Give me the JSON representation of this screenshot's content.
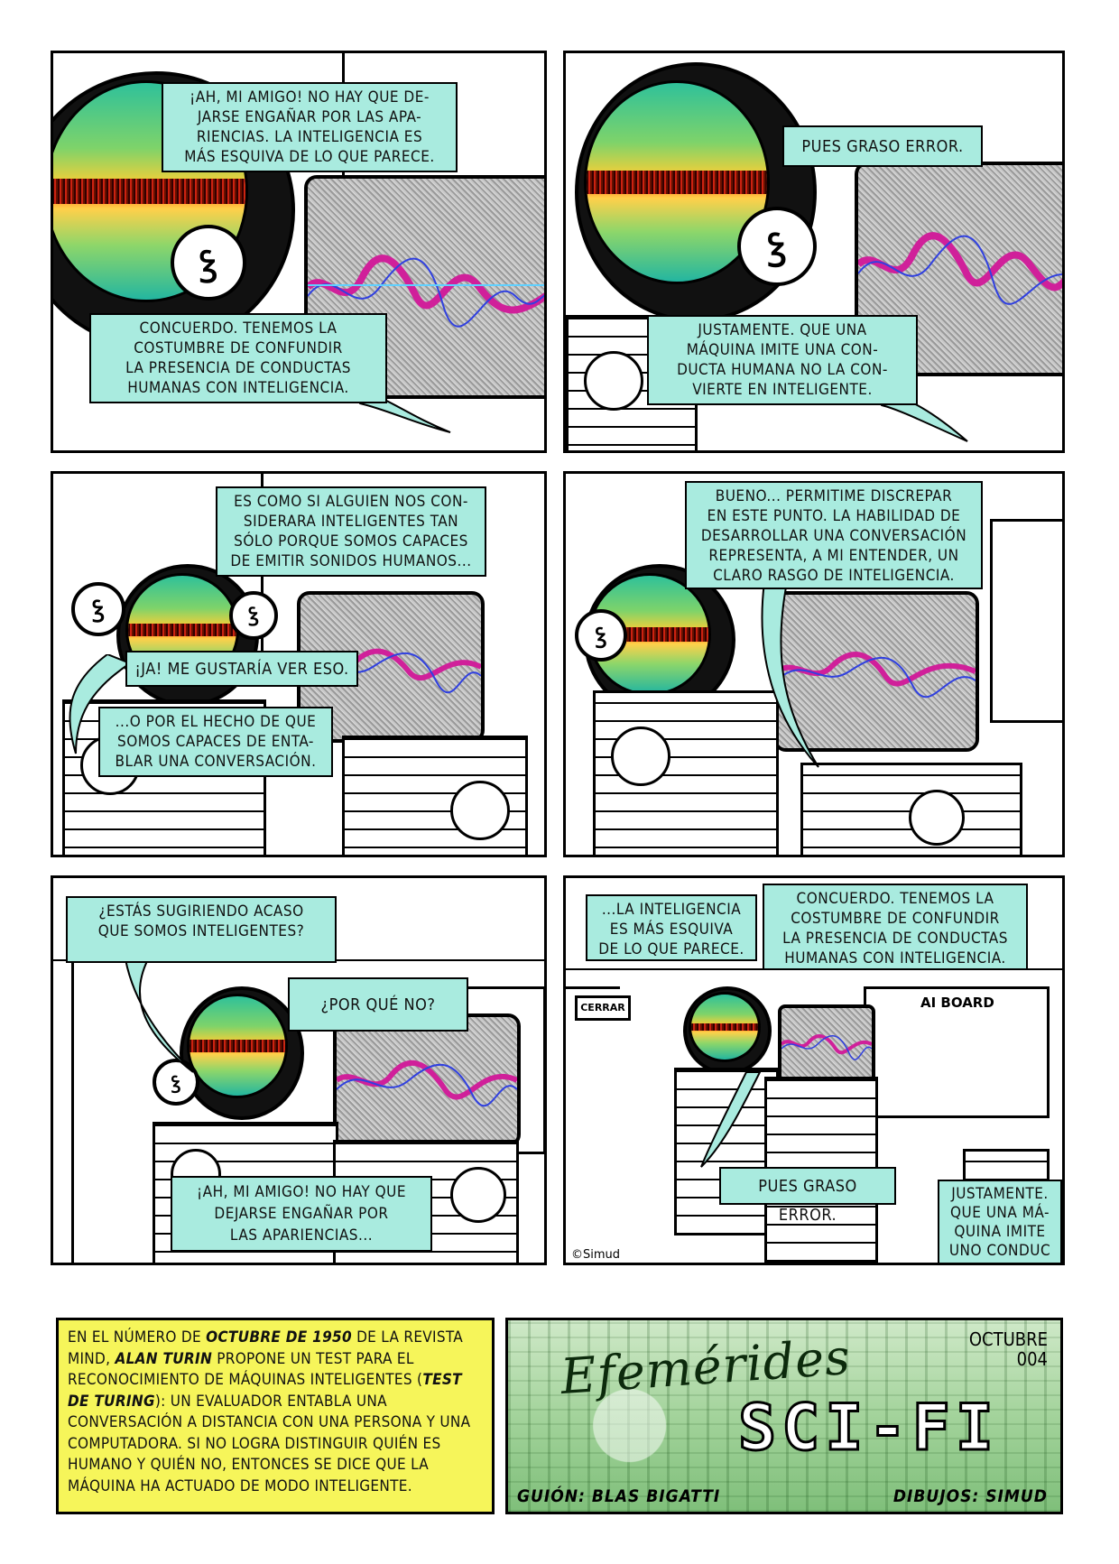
{
  "panels": [
    {
      "bubbles": [
        "¡AH, MI AMIGO! NO HAY QUE DE-\nJARSE ENGAÑAR POR LAS APA-\nRIENCIAS. LA INTELIGENCIA ES\nMÁS ESQUIVA DE LO QUE PARECE.",
        "CONCUERDO. TENEMOS LA\nCOSTUMBRE DE CONFUNDIR\nLA PRESENCIA DE CONDUCTAS\nHUMANAS CON INTELIGENCIA."
      ]
    },
    {
      "bubbles": [
        "PUES GRASO ERROR.",
        "JUSTAMENTE. QUE UNA\nMÁQUINA IMITE UNA CON-\nDUCTA HUMANA NO LA CON-\nVIERTE EN INTELIGENTE."
      ]
    },
    {
      "bubbles": [
        "ES COMO SI ALGUIEN NOS CON-\nSIDERARA INTELIGENTES TAN\nSÓLO PORQUE SOMOS CAPACES\nDE EMITIR SONIDOS HUMANOS...",
        "¡JA! ME GUSTARÍA VER ESO.",
        "...O POR EL HECHO DE QUE\nSOMOS CAPACES DE ENTA-\nBLAR UNA CONVERSACIÓN."
      ]
    },
    {
      "bubbles": [
        "BUENO... PERMITIME DISCREPAR\nEN ESTE PUNTO. LA HABILIDAD DE\nDESARROLLAR UNA CONVERSACIÓN\nREPRESENTA, A MI ENTENDER, UN\nCLARO RASGO DE INTELIGENCIA."
      ]
    },
    {
      "bubbles": [
        "¿ESTÁS SUGIRIENDO ACASO\nQUE SOMOS INTELIGENTES?",
        "¿POR QUÉ NO?",
        "¡AH, MI AMIGO! NO HAY QUE\nDEJARSE ENGAÑAR POR\nLAS APARIENCIAS..."
      ]
    },
    {
      "bubbles": [
        "...LA INTELIGENCIA\nES MÁS ESQUIVA\nDE LO QUE PARECE.",
        "CONCUERDO. TENEMOS LA\nCOSTUMBRE DE CONFUNDIR\nLA PRESENCIA DE CONDUCTAS\nHUMANAS CON INTELIGENCIA.",
        "PUES GRASO ERROR.",
        "JUSTAMENTE.\nQUE UNA MÁ-\nQUINA IMITE\nUNO CONDUC"
      ],
      "door_sign": "CERRAR",
      "board_title": "AI BOARD",
      "copyright": "©Simud"
    }
  ],
  "caption": {
    "text_before_1": "EN EL NÚMERO DE ",
    "bold_1": "OCTUBRE DE 1950",
    "text_before_2": " DE LA REVISTA MIND, ",
    "bold_2": "ALAN TURIN",
    "text_before_3": " PROPONE UN TEST PARA EL RECONOCIMIENTO DE MÁQUINAS INTELIGENTES (",
    "bold_3": "TEST DE TURING",
    "text_after": "): UN EVALUADOR ENTABLA UNA CONVERSACIÓN A DISTANCIA CON UNA PERSONA Y UNA COMPUTADORA. SI NO LOGRA DISTINGUIR QUIÉN ES HUMANO Y QUIÉN NO, ENTONCES SE DICE QUE LA MÁQUINA HA ACTUADO DE MODO INTELIGENTE."
  },
  "title_box": {
    "title": "Efemérides",
    "subtitle": "SCI-FI",
    "month": "OCTUBRE",
    "issue": "004",
    "script_credit": "GUIÓN: BLAS BIGATTI",
    "art_credit": "DIBUJOS: SIMUD"
  },
  "colors": {
    "bubble": "#a9ebdf",
    "caption": "#f6f55a",
    "title_green": "#a3d39b"
  }
}
